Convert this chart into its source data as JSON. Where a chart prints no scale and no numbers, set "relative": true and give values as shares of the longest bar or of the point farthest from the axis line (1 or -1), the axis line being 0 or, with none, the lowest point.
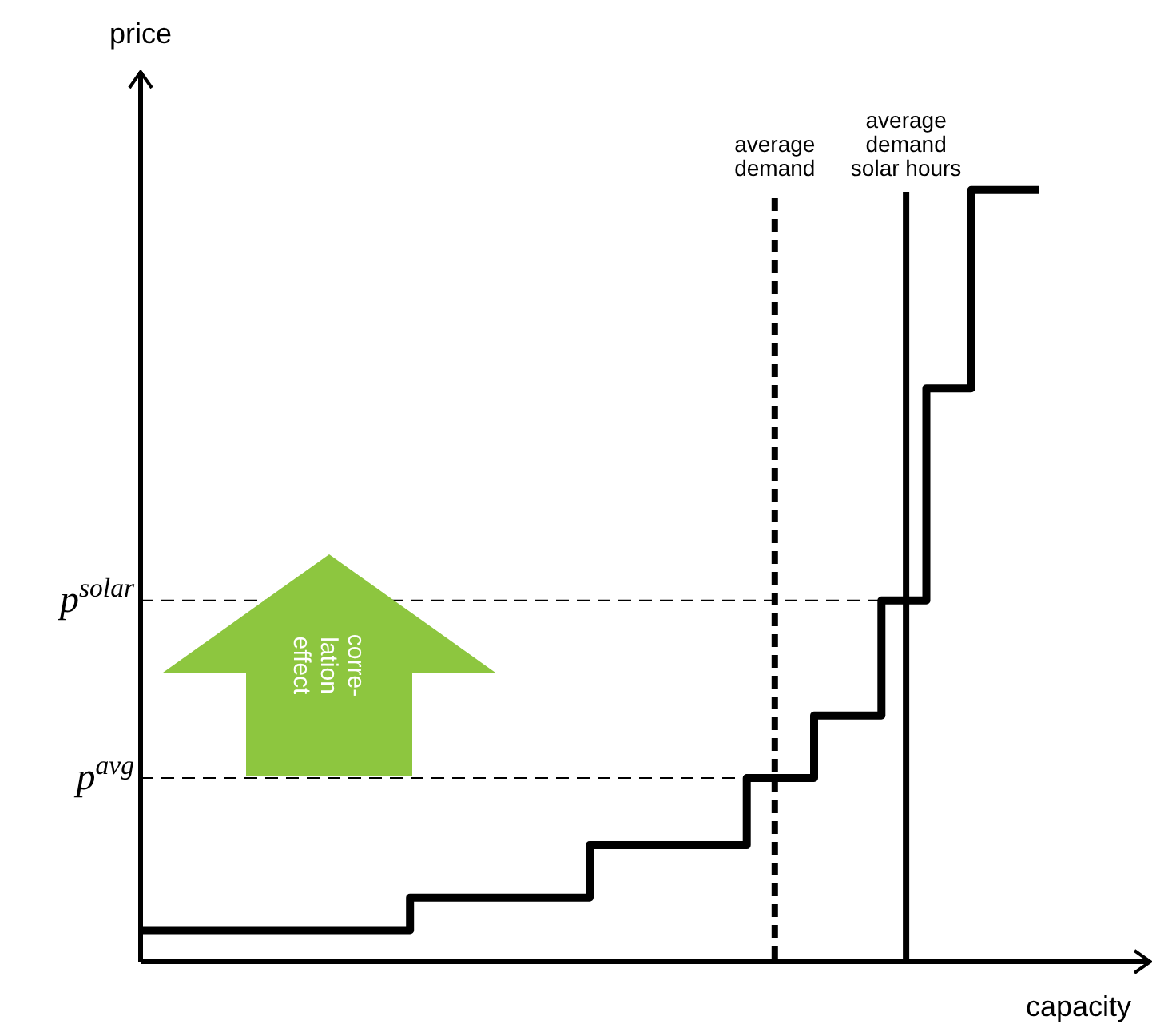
{
  "chart_data": {
    "type": "step",
    "relative": true,
    "xlabel": "capacity",
    "ylabel": "price",
    "categories": [
      null,
      null,
      null,
      null,
      null,
      null,
      null,
      null,
      null,
      null,
      null,
      null,
      null,
      null,
      null,
      null,
      null,
      null,
      null,
      null,
      null,
      null,
      null,
      null,
      null,
      null,
      null,
      null,
      null,
      null,
      null,
      null,
      null,
      null,
      null,
      null,
      null,
      null,
      null,
      null,
      null
    ],
    "series": [
      {
        "color": "#000000",
        "values": [
          0.041,
          0.041,
          0.041,
          0.041,
          0.041,
          0.041,
          0.041,
          0.041,
          0.041,
          0.041,
          0.041,
          0.041,
          0.083,
          0.083,
          0.083,
          0.083,
          0.083,
          0.083,
          0.083,
          0.083,
          0.151,
          0.151,
          0.151,
          0.151,
          0.151,
          0.151,
          0.151,
          0.238,
          0.238,
          0.238,
          0.319,
          0.319,
          0.319,
          0.468,
          0.468,
          0.743,
          0.743,
          1,
          1,
          1,
          1
        ]
      }
    ],
    "tick_labels": false,
    "legend": false,
    "marker": "none",
    "line_style": "solid",
    "ref_lines": [
      {
        "axis": "y",
        "value": 0.238,
        "label": "p$^{avg}$",
        "line_style": "dashed"
      },
      {
        "axis": "y",
        "value": 0.468,
        "label": "p$^{solar}$",
        "line_style": "dashed"
      }
    ],
    "annotations": [
      "corre-\nlation\neffect",
      "average\ndemand",
      "average\ndemand\nsolar hours"
    ]
  }
}
